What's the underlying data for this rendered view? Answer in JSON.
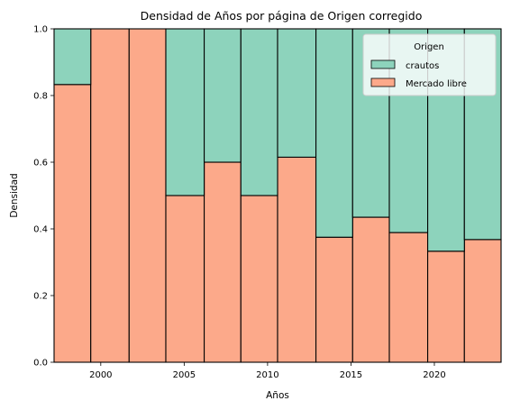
{
  "chart_data": {
    "type": "bar",
    "stacked": true,
    "normalized": true,
    "title": "Densidad de Años por página de Origen corregido",
    "xlabel": "Años",
    "ylabel": "Densidad",
    "xlim": [
      1997.2,
      2024.0
    ],
    "ylim": [
      0,
      1.0
    ],
    "xticks": [
      "2000",
      "2005",
      "2010",
      "2015",
      "2020"
    ],
    "yticks": [
      "0.0",
      "0.2",
      "0.4",
      "0.6",
      "0.8",
      "1.0"
    ],
    "bins": [
      [
        1997.2,
        1999.4
      ],
      [
        1999.4,
        2001.7
      ],
      [
        2001.7,
        2003.9
      ],
      [
        2003.9,
        2006.2
      ],
      [
        2006.2,
        2008.4
      ],
      [
        2008.4,
        2010.6
      ],
      [
        2010.6,
        2012.9
      ],
      [
        2012.9,
        2015.1
      ],
      [
        2015.1,
        2017.3
      ],
      [
        2017.3,
        2019.6
      ],
      [
        2019.6,
        2021.8
      ],
      [
        2021.8,
        2024.0
      ]
    ],
    "series": [
      {
        "name": "Mercado libre",
        "color": "#fca98a",
        "values": [
          0.833,
          1.0,
          1.0,
          0.5,
          0.6,
          0.5,
          0.615,
          0.375,
          0.435,
          0.389,
          0.333,
          0.368
        ]
      },
      {
        "name": "crautos",
        "color": "#8dd3bc",
        "values": [
          0.167,
          0.0,
          0.0,
          0.5,
          0.4,
          0.5,
          0.385,
          0.625,
          0.565,
          0.611,
          0.667,
          0.632
        ]
      }
    ],
    "legend": {
      "title": "Origen",
      "position": "top-right",
      "entries": [
        "crautos",
        "Mercado libre"
      ]
    },
    "grid": false
  }
}
